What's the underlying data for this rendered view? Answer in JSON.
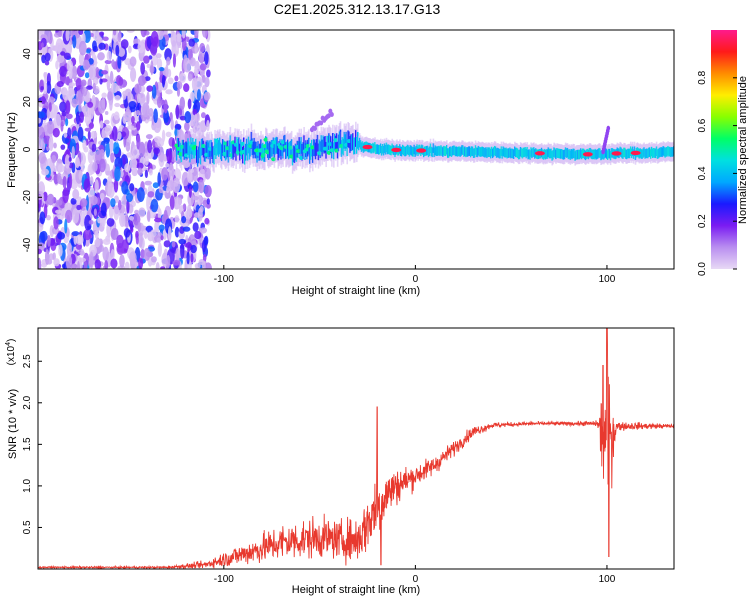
{
  "figure": {
    "title": "C2E1.2025.312.13.17.G13"
  },
  "colors": {
    "snr_line": "#e8392e",
    "colorbar_stops": [
      "#e8d9f5",
      "#b98ef0",
      "#7a1cf2",
      "#1a1aff",
      "#00a8ff",
      "#00e0e0",
      "#00ff66",
      "#88ff00",
      "#ffee00",
      "#ff8c00",
      "#ff1a1a",
      "#ff1a8c"
    ]
  },
  "chart_data": [
    {
      "type": "heatmap",
      "xlabel": "Height of straight line (km)",
      "ylabel": "Frequency (Hz)",
      "xlim": [
        -197,
        135
      ],
      "ylim": [
        -50,
        50
      ],
      "xticks": [
        -100,
        0,
        100
      ],
      "xtick_labels": [
        "-100",
        "0",
        "100"
      ],
      "yticks": [
        -40,
        -20,
        0,
        20,
        40
      ],
      "ytick_labels": [
        "-40",
        "-20",
        "0",
        "20",
        "40"
      ],
      "colorbar": {
        "label": "Normalized spectral amplitude",
        "range": [
          0,
          1
        ],
        "ticks": [
          0.0,
          0.2,
          0.4,
          0.6,
          0.8
        ],
        "tick_labels": [
          "0.0",
          "0.2",
          "0.4",
          "0.6",
          "0.8"
        ]
      },
      "features": {
        "scatter_region_x": [
          -197,
          -108
        ],
        "band_start_x": -125,
        "band_center_hz": [
          [
            -125,
            0
          ],
          [
            -60,
            0
          ],
          [
            -35,
            3
          ],
          [
            -20,
            0
          ],
          [
            30,
            -1
          ],
          [
            90,
            -2
          ],
          [
            135,
            -1
          ]
        ],
        "peak_x": [
          -25,
          -10,
          3,
          65,
          90,
          105,
          115
        ],
        "feature_near_x": -50
      }
    },
    {
      "type": "line",
      "xlabel": "Height of straight line (km)",
      "ylabel": "SNR (10 * v/v)",
      "yscale_label": "(x10",
      "yscale_exp": "4",
      "xlim": [
        -197,
        135
      ],
      "ylim": [
        0,
        2.9
      ],
      "xticks": [
        -100,
        0,
        100
      ],
      "xtick_labels": [
        "-100",
        "0",
        "100"
      ],
      "yticks": [
        0.5,
        1.0,
        1.5,
        2.0,
        2.5
      ],
      "ytick_labels": [
        "0.5",
        "1.0",
        "1.5",
        "2.0",
        "2.5"
      ],
      "envelope": {
        "x": [
          -197,
          -130,
          -110,
          -90,
          -70,
          -50,
          -40,
          -30,
          -25,
          -20,
          -15,
          -10,
          0,
          10,
          20,
          30,
          40,
          60,
          80,
          95,
          100,
          105,
          135
        ],
        "center": [
          0.02,
          0.02,
          0.05,
          0.18,
          0.32,
          0.38,
          0.35,
          0.35,
          0.55,
          0.75,
          0.9,
          1.0,
          1.12,
          1.25,
          1.45,
          1.65,
          1.73,
          1.75,
          1.75,
          1.75,
          1.5,
          1.72,
          1.72
        ],
        "noise": [
          0.01,
          0.01,
          0.04,
          0.12,
          0.2,
          0.22,
          0.2,
          0.25,
          0.3,
          0.35,
          0.25,
          0.2,
          0.12,
          0.1,
          0.08,
          0.06,
          0.03,
          0.02,
          0.02,
          0.03,
          0.9,
          0.05,
          0.02
        ]
      },
      "spikes": [
        {
          "x": -20,
          "y": 1.95
        },
        {
          "x": -18,
          "y": 0.05
        },
        {
          "x": 100,
          "y": 2.9
        },
        {
          "x": 101,
          "y": 0.15
        },
        {
          "x": 98,
          "y": 2.45
        }
      ]
    }
  ]
}
